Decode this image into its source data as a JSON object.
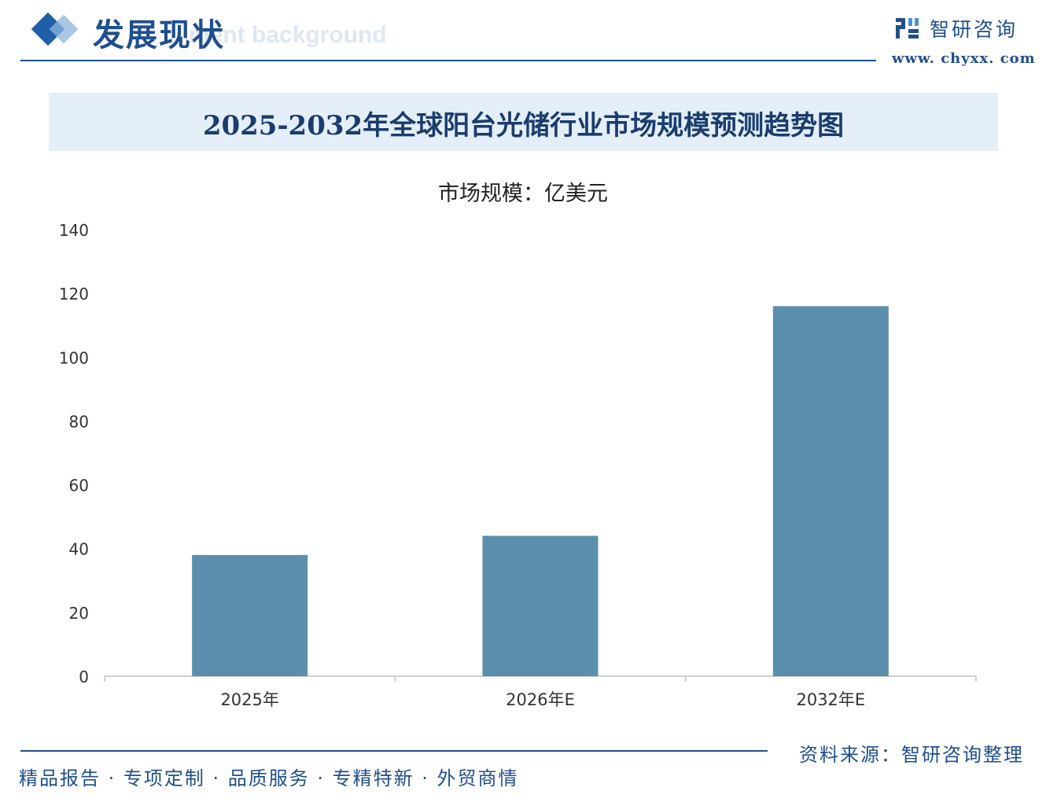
{
  "header": {
    "section_title": "发展现状",
    "section_subtitle": "ment background",
    "brand_name": "智研咨询",
    "brand_url": "www. chyxx. com"
  },
  "chart_data": {
    "type": "bar",
    "title": "2025-2032年全球阳台光储行业市场规模预测趋势图",
    "unit_label": "市场规模：亿美元",
    "categories": [
      "2025年",
      "2026年E",
      "2032年E"
    ],
    "values": [
      38,
      44,
      116
    ],
    "ylim": [
      0,
      140
    ],
    "yticks": [
      0,
      20,
      40,
      60,
      80,
      100,
      120,
      140
    ],
    "grid": false,
    "bar_color": "#5b8fad"
  },
  "footer": {
    "source": "资料来源：智研咨询整理",
    "tagline": "精品报告 · 专项定制 · 品质服务 · 专精特新 · 外贸商情"
  }
}
